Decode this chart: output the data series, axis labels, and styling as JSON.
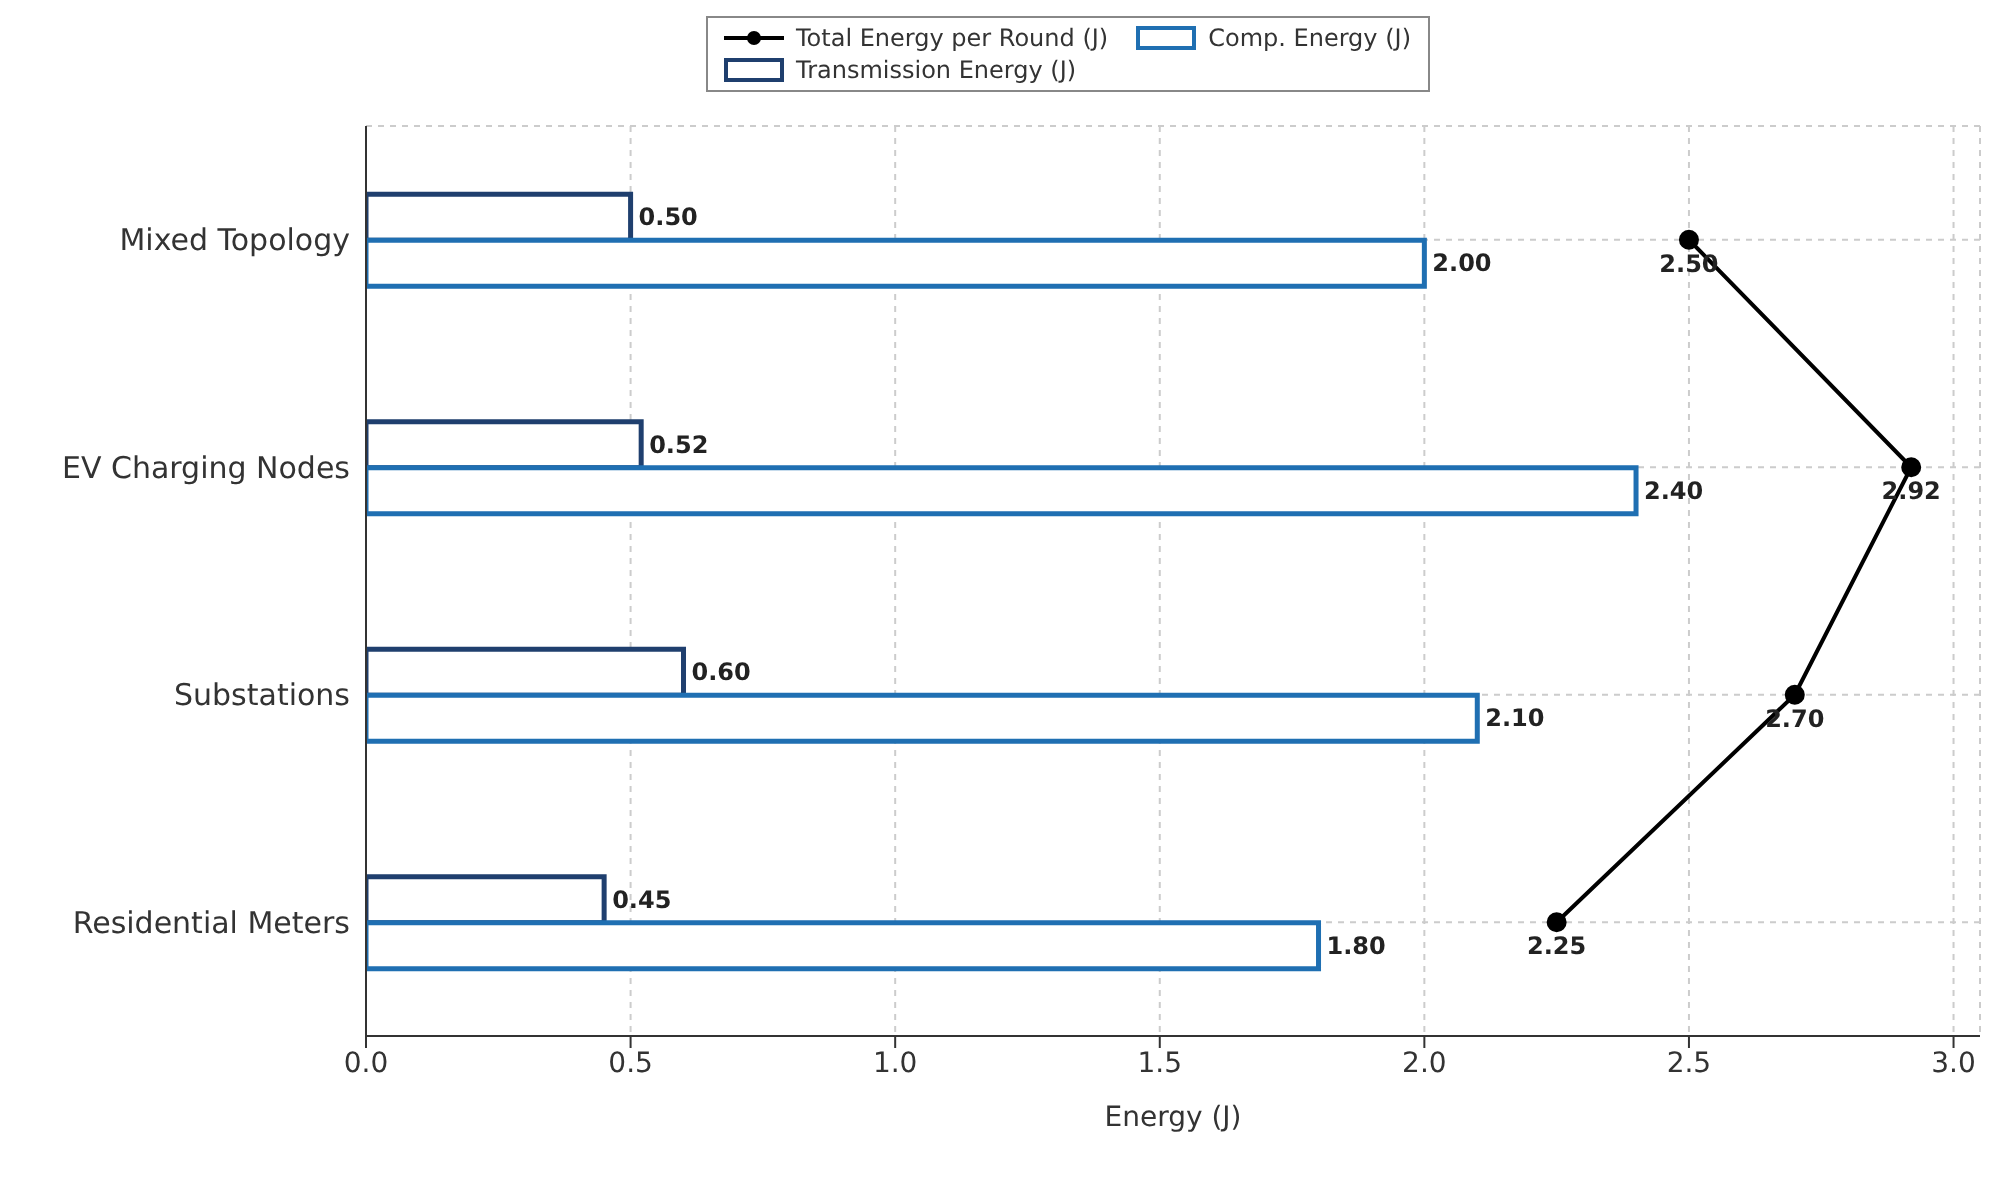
{
  "chart_data": {
    "type": "bar",
    "orientation": "horizontal",
    "categories": [
      "Mixed Topology",
      "EV Charging Nodes",
      "Substations",
      "Residential Meters"
    ],
    "series": [
      {
        "name": "Transmission Energy (J)",
        "color": "#1f3f6e",
        "values": [
          0.5,
          0.52,
          0.6,
          0.45
        ],
        "value_labels": [
          "0.50",
          "0.52",
          "0.60",
          "0.45"
        ]
      },
      {
        "name": "Comp. Energy (J)",
        "color": "#1f6fb2",
        "values": [
          2.0,
          2.4,
          2.1,
          1.8
        ],
        "value_labels": [
          "2.00",
          "2.40",
          "2.10",
          "1.80"
        ]
      },
      {
        "name": "Total Energy per Round (J)",
        "type": "line",
        "color": "#000000",
        "marker": "circle",
        "values": [
          2.5,
          2.92,
          2.7,
          2.25
        ],
        "value_labels": [
          "2.50",
          "2.92",
          "2.70",
          "2.25"
        ]
      }
    ],
    "xlabel": "Energy (J)",
    "xlim": [
      0,
      3.05
    ],
    "xticks": [
      {
        "value": 0,
        "label": "0.0"
      },
      {
        "value": 0.5,
        "label": "0.5"
      },
      {
        "value": 1,
        "label": "1.0"
      },
      {
        "value": 1.5,
        "label": "1.5"
      },
      {
        "value": 2,
        "label": "2.0"
      },
      {
        "value": 2.5,
        "label": "2.5"
      },
      {
        "value": 3,
        "label": "3.0"
      }
    ],
    "grid": true,
    "legend": "top"
  }
}
